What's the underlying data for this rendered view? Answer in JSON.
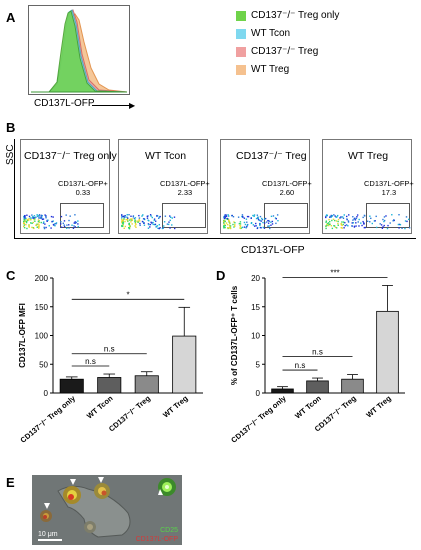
{
  "panels": {
    "a": "A",
    "b": "B",
    "c": "C",
    "d": "D",
    "e": "E"
  },
  "panel_a": {
    "xlabel": "CD137L-OFP",
    "legend": [
      {
        "label": "CD137⁻/⁻ Treg only",
        "color": "#6fd34a"
      },
      {
        "label": "WT Tcon",
        "color": "#7fd8ef"
      },
      {
        "label": "CD137⁻/⁻ Treg",
        "color": "#f0a0a0"
      },
      {
        "label": "WT Treg",
        "color": "#f5c18f"
      }
    ]
  },
  "panel_b": {
    "xlabel": "CD137L-OFP",
    "ylabel": "SSC",
    "plots": [
      {
        "title": "CD137⁻/⁻ Treg only",
        "gate_label": "CD137L-OFP+",
        "gate_value": "0.33"
      },
      {
        "title": "WT Tcon",
        "gate_label": "CD137L-OFP+",
        "gate_value": "2.33"
      },
      {
        "title": "CD137⁻/⁻ Treg",
        "gate_label": "CD137L-OFP+",
        "gate_value": "2.60"
      },
      {
        "title": "WT Treg",
        "gate_label": "CD137L-OFP+",
        "gate_value": "17.3"
      }
    ]
  },
  "chart_data": [
    {
      "type": "bar",
      "title": "",
      "xlabel": "",
      "ylabel": "CD137L-OFP MFI",
      "categories": [
        "CD137⁻/⁻ Treg only",
        "WT Tcon",
        "CD137⁻/⁻ Treg",
        "WT Treg"
      ],
      "values": [
        24,
        27,
        30,
        99
      ],
      "errors": [
        4,
        6,
        7,
        50
      ],
      "colors": [
        "#1a1a1a",
        "#5e5e5e",
        "#8a8a8a",
        "#d6d6d6"
      ],
      "ylim": [
        0,
        200
      ],
      "yticks": [
        0,
        50,
        100,
        150,
        200
      ],
      "significance": [
        {
          "from": 0,
          "to": 1,
          "label": "n.s"
        },
        {
          "from": 0,
          "to": 2,
          "label": "n.s"
        },
        {
          "from": 0,
          "to": 3,
          "label": "*"
        }
      ]
    },
    {
      "type": "bar",
      "title": "",
      "xlabel": "",
      "ylabel": "% of CD137L-OFP⁺ T cells",
      "categories": [
        "CD137⁻/⁻ Treg only",
        "WT Tcon",
        "CD137⁻/⁻ Treg",
        "WT Treg"
      ],
      "values": [
        0.7,
        2.1,
        2.4,
        14.2
      ],
      "errors": [
        0.4,
        0.5,
        0.8,
        4.5
      ],
      "colors": [
        "#1a1a1a",
        "#5e5e5e",
        "#8a8a8a",
        "#d6d6d6"
      ],
      "ylim": [
        0,
        20
      ],
      "yticks": [
        0,
        5,
        10,
        15,
        20
      ],
      "significance": [
        {
          "from": 0,
          "to": 1,
          "label": "n.s"
        },
        {
          "from": 0,
          "to": 2,
          "label": "n.s"
        },
        {
          "from": 0,
          "to": 3,
          "label": "***"
        }
      ]
    }
  ],
  "panel_e": {
    "legend_line1": "CD25",
    "legend_line2": "CD137L-OFP",
    "scale_bar": "10 μm"
  }
}
